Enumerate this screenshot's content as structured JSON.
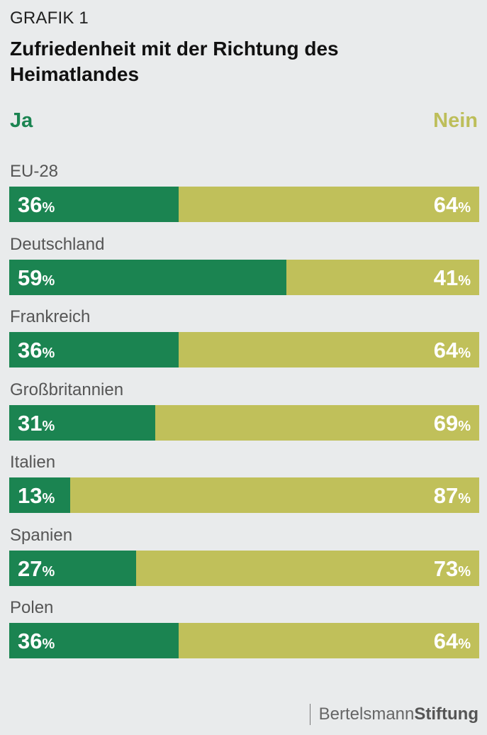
{
  "header": {
    "kicker": "GRAFIK 1",
    "title": "Zufriedenheit mit der Richtung des Heimatlandes"
  },
  "colors": {
    "yes": "#1b8451",
    "no": "#c0c05a",
    "background": "#e9ebec"
  },
  "chart_data": {
    "type": "bar",
    "orientation": "horizontal-stacked",
    "categories": [
      "EU-28",
      "Deutschland",
      "Frankreich",
      "Großbritannien",
      "Italien",
      "Spanien",
      "Polen"
    ],
    "series": [
      {
        "name": "Ja",
        "values": [
          36,
          59,
          36,
          31,
          13,
          27,
          36
        ]
      },
      {
        "name": "Nein",
        "values": [
          64,
          41,
          64,
          69,
          87,
          73,
          64
        ]
      }
    ],
    "unit": "%",
    "xlim": [
      0,
      100
    ],
    "legend": {
      "yes": "Ja",
      "no": "Nein",
      "position": "top"
    }
  },
  "footer": {
    "brand_light": "Bertelsmann",
    "brand_bold": "Stiftung"
  }
}
